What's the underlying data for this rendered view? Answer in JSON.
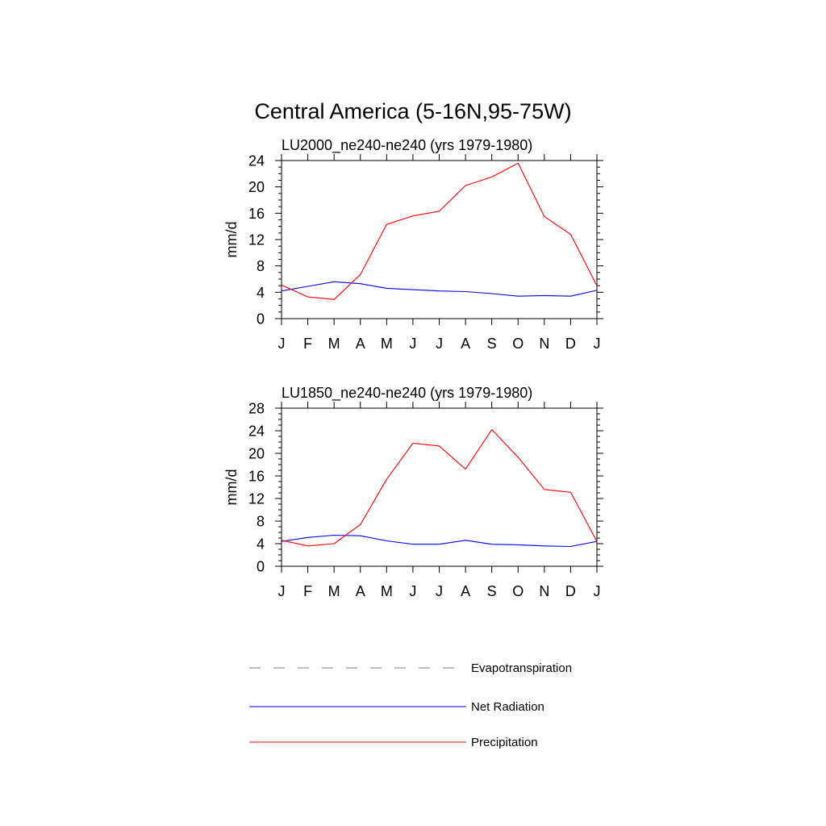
{
  "figure": {
    "title": "Central America (5-16N,95-75W)"
  },
  "colors": {
    "precipitation": "#ff0000",
    "net_radiation": "#0000ff",
    "evapotranspiration": "#808080"
  },
  "legend": {
    "items": [
      {
        "label": "Evapotranspiration",
        "style": "dashed",
        "color": "#808080"
      },
      {
        "label": "Net Radiation",
        "style": "solid",
        "color": "#0000ff"
      },
      {
        "label": "Precipitation",
        "style": "solid",
        "color": "#ff0000"
      }
    ]
  },
  "chart_data": [
    {
      "type": "line",
      "title": "LU2000_ne240-ne240 (yrs 1979-1980)",
      "ylabel": "mm/d",
      "xlabel": "",
      "categories": [
        "J",
        "F",
        "M",
        "A",
        "M",
        "J",
        "J",
        "A",
        "S",
        "O",
        "N",
        "D",
        "J"
      ],
      "ylim": [
        0,
        24
      ],
      "yticks": [
        0,
        4,
        8,
        12,
        16,
        20,
        24
      ],
      "grid": false,
      "series": [
        {
          "name": "Net Radiation",
          "color": "#0000ff",
          "values": [
            4.2,
            4.9,
            5.6,
            5.3,
            4.6,
            4.4,
            4.2,
            4.1,
            3.8,
            3.4,
            3.5,
            3.4,
            4.3
          ]
        },
        {
          "name": "Precipitation",
          "color": "#ff0000",
          "values": [
            5.1,
            3.3,
            2.9,
            6.7,
            14.3,
            15.6,
            16.3,
            20.2,
            21.5,
            23.6,
            15.5,
            12.8,
            5.0
          ]
        }
      ]
    },
    {
      "type": "line",
      "title": "LU1850_ne240-ne240 (yrs 1979-1980)",
      "ylabel": "mm/d",
      "xlabel": "",
      "categories": [
        "J",
        "F",
        "M",
        "A",
        "M",
        "J",
        "J",
        "A",
        "S",
        "O",
        "N",
        "D",
        "J"
      ],
      "ylim": [
        0,
        28
      ],
      "yticks": [
        0,
        4,
        8,
        12,
        16,
        20,
        24,
        28
      ],
      "grid": false,
      "series": [
        {
          "name": "Net Radiation",
          "color": "#0000ff",
          "values": [
            4.4,
            5.1,
            5.5,
            5.4,
            4.5,
            3.9,
            3.9,
            4.6,
            3.9,
            3.8,
            3.6,
            3.5,
            4.4
          ]
        },
        {
          "name": "Precipitation",
          "color": "#ff0000",
          "values": [
            4.6,
            3.6,
            4.0,
            7.4,
            15.4,
            21.8,
            21.3,
            17.2,
            24.2,
            19.3,
            13.6,
            13.1,
            4.4
          ]
        }
      ]
    }
  ]
}
